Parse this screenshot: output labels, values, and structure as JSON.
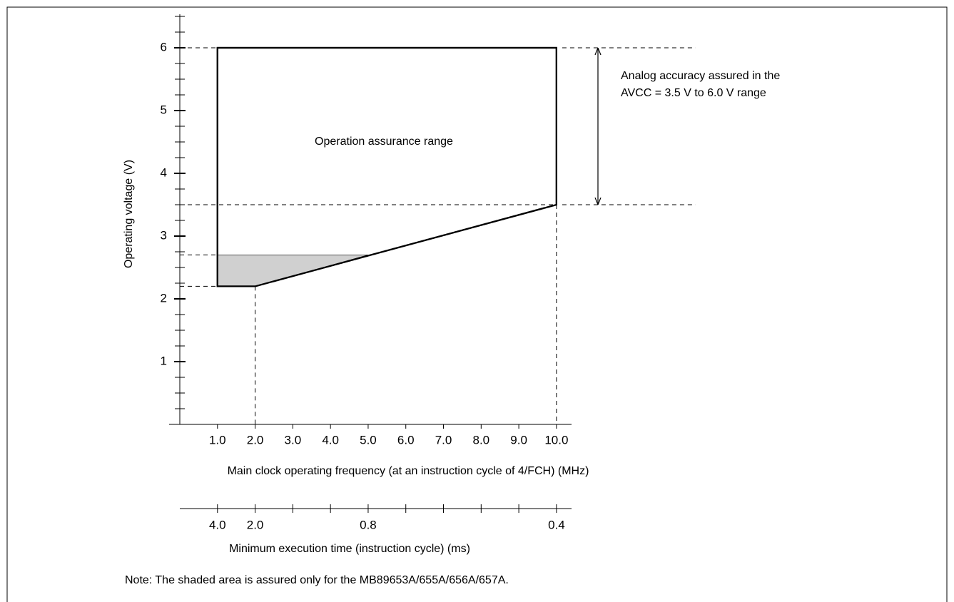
{
  "chart_data": {
    "type": "area",
    "ylabel": "Operating voltage (V)",
    "xlabel": "Main clock operating frequency (at an instruction cycle of 4/FCH) (MHz)",
    "x2label": "Minimum execution time (instruction cycle) (ms)",
    "xlim": [
      0,
      10.4
    ],
    "ylim": [
      0,
      6.5
    ],
    "xticks": [
      {
        "value": 1,
        "label": "1.0"
      },
      {
        "value": 2,
        "label": "2.0"
      },
      {
        "value": 3,
        "label": "3.0"
      },
      {
        "value": 4,
        "label": "4.0"
      },
      {
        "value": 5,
        "label": "5.0"
      },
      {
        "value": 6,
        "label": "6.0"
      },
      {
        "value": 7,
        "label": "7.0"
      },
      {
        "value": 8,
        "label": "8.0"
      },
      {
        "value": 9,
        "label": "9.0"
      },
      {
        "value": 10,
        "label": "10.0"
      }
    ],
    "yticks": [
      1,
      2,
      3,
      4,
      5,
      6
    ],
    "yminorticks": [
      0.25,
      0.5,
      0.75,
      1.25,
      1.5,
      1.75,
      2.25,
      2.5,
      2.75,
      3.25,
      3.5,
      3.75,
      4.25,
      4.5,
      4.75,
      5.25,
      5.5,
      5.75,
      6.25,
      6.5
    ],
    "x2ticks": [
      {
        "value": 1,
        "label": "4.0"
      },
      {
        "value": 2,
        "label": "2.0"
      },
      {
        "value": 5,
        "label": "0.8"
      },
      {
        "value": 10,
        "label": "0.4"
      }
    ],
    "x2minorticks": [
      3,
      4,
      6,
      7,
      8,
      9
    ],
    "series": [
      {
        "x": [
          1,
          10,
          10,
          2,
          1
        ],
        "values": [
          6,
          6,
          3.5,
          2.2,
          2.2
        ],
        "color": "none"
      },
      {
        "x": [
          1,
          5,
          2,
          1
        ],
        "values": [
          2.7,
          2.7,
          2.2,
          2.2
        ],
        "color": "#d0d0d0"
      }
    ],
    "hlines": [
      6,
      3.5,
      2.7,
      2.2
    ],
    "vlines": [
      2,
      10
    ],
    "range": [
      3.5,
      6
    ],
    "annotations": [
      "Operation assurance range",
      "Analog accuracy assured in the",
      "AVCC = 3.5 V to 6.0 V range"
    ],
    "note": "Note: The shaded area is assured only for the MB89653A/655A/656A/657A."
  }
}
